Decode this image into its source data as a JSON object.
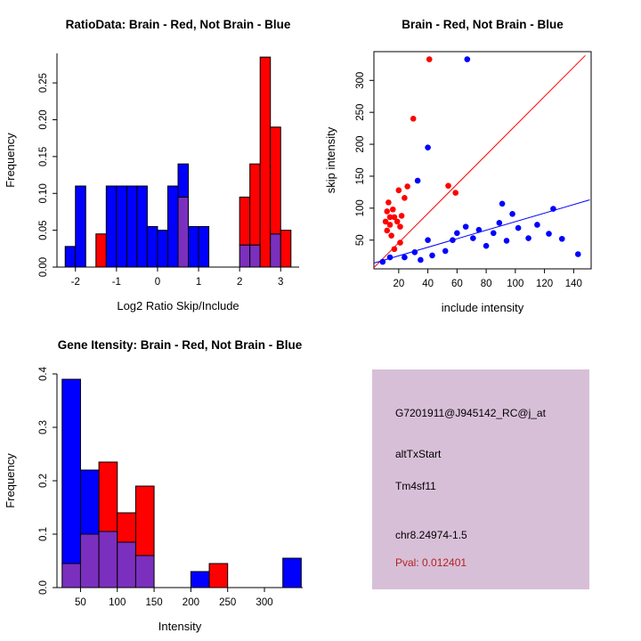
{
  "page": {
    "background": "#FFFFFF"
  },
  "info_panel": {
    "bg": "#D8BFD8",
    "lines": [
      "G7201911@J945142_RC@j_at",
      "altTxStart",
      "Tm4sf11",
      "chr8.24974-1.5"
    ],
    "pval": "Pval: 0.012401",
    "pval_color": "#B22222"
  },
  "chart_data": [
    {
      "id": "ratio_hist",
      "type": "bar",
      "subtype": "overlaid_histogram",
      "title": "RatioData: Brain - Red, Not Brain - Blue",
      "xlabel": "Log2 Ratio Skip/Include",
      "ylabel": "Frequency",
      "xlim": [
        -2.45,
        3.45
      ],
      "ylim": [
        0,
        0.29
      ],
      "xticks": [
        -2,
        -1,
        0,
        1,
        2,
        3
      ],
      "yticks": [
        0,
        0.05,
        0.1,
        0.15,
        0.2,
        0.25
      ],
      "ytick_labels": [
        "0.00",
        "0.05",
        "0.10",
        "0.15",
        "0.20",
        "0.25"
      ],
      "bin_width": 0.25,
      "colors": {
        "blue": "#0000FF",
        "red": "#FF0000",
        "overlap": "#7B2FBE"
      },
      "legend": {
        "red_series": "Brain",
        "blue_series": "Not Brain"
      },
      "bins": [
        {
          "x0": -2.25,
          "blue": 0.028,
          "red": 0
        },
        {
          "x0": -2.0,
          "blue": 0.11,
          "red": 0
        },
        {
          "x0": -1.5,
          "blue": 0,
          "red": 0.045
        },
        {
          "x0": -1.25,
          "blue": 0.11,
          "red": 0
        },
        {
          "x0": -1.0,
          "blue": 0.11,
          "red": 0
        },
        {
          "x0": -0.75,
          "blue": 0.11,
          "red": 0
        },
        {
          "x0": -0.5,
          "blue": 0.11,
          "red": 0
        },
        {
          "x0": -0.25,
          "blue": 0.055,
          "red": 0
        },
        {
          "x0": 0.0,
          "blue": 0.05,
          "red": 0
        },
        {
          "x0": 0.25,
          "blue": 0.11,
          "red": 0
        },
        {
          "x0": 0.5,
          "blue": 0.14,
          "red": 0.095
        },
        {
          "x0": 0.75,
          "blue": 0.055,
          "red": 0
        },
        {
          "x0": 1.0,
          "blue": 0.055,
          "red": 0
        },
        {
          "x0": 2.0,
          "blue": 0.03,
          "red": 0.095
        },
        {
          "x0": 2.25,
          "blue": 0.03,
          "red": 0.14
        },
        {
          "x0": 2.5,
          "blue": 0,
          "red": 0.285
        },
        {
          "x0": 2.75,
          "blue": 0.045,
          "red": 0.19
        },
        {
          "x0": 3.0,
          "blue": 0,
          "red": 0.05
        }
      ]
    },
    {
      "id": "scatter",
      "type": "scatter",
      "title": "Brain - Red, Not Brain - Blue",
      "xlabel": "include intensity",
      "ylabel": "skip intensity",
      "xlim": [
        3,
        152
      ],
      "ylim": [
        5,
        345
      ],
      "xticks": [
        20,
        40,
        60,
        80,
        100,
        120,
        140
      ],
      "yticks": [
        50,
        100,
        150,
        200,
        250,
        300
      ],
      "boxed": true,
      "series": [
        {
          "name": "Brain",
          "color": "#FF0000",
          "points": [
            [
              12,
              65
            ],
            [
              15,
              57
            ],
            [
              11,
              79
            ],
            [
              14,
              86
            ],
            [
              17,
              86
            ],
            [
              12,
              95
            ],
            [
              16,
              98
            ],
            [
              19,
              79
            ],
            [
              21,
              71
            ],
            [
              13,
              109
            ],
            [
              24,
              116
            ],
            [
              20,
              128
            ],
            [
              26,
              134
            ],
            [
              21,
              46
            ],
            [
              17,
              36
            ],
            [
              30,
              240
            ],
            [
              41,
              333
            ],
            [
              54,
              135
            ],
            [
              59,
              124
            ],
            [
              22,
              88
            ],
            [
              14,
              74
            ]
          ]
        },
        {
          "name": "Not Brain",
          "color": "#0000FF",
          "points": [
            [
              9,
              16
            ],
            [
              14,
              23
            ],
            [
              24,
              23
            ],
            [
              31,
              31
            ],
            [
              35,
              19
            ],
            [
              40,
              50
            ],
            [
              43,
              26
            ],
            [
              33,
              143
            ],
            [
              40,
              195
            ],
            [
              52,
              33
            ],
            [
              57,
              50
            ],
            [
              60,
              61
            ],
            [
              66,
              71
            ],
            [
              71,
              53
            ],
            [
              75,
              66
            ],
            [
              80,
              41
            ],
            [
              85,
              61
            ],
            [
              89,
              77
            ],
            [
              94,
              49
            ],
            [
              98,
              91
            ],
            [
              102,
              69
            ],
            [
              109,
              53
            ],
            [
              115,
              74
            ],
            [
              123,
              60
            ],
            [
              126,
              99
            ],
            [
              132,
              52
            ],
            [
              143,
              28
            ],
            [
              67,
              333
            ],
            [
              91,
              107
            ]
          ]
        }
      ],
      "lines": [
        {
          "color": "#FF0000",
          "from": [
            3,
            7
          ],
          "to": [
            148,
            339
          ]
        },
        {
          "color": "#0000FF",
          "from": [
            3,
            14
          ],
          "to": [
            151,
            113
          ]
        }
      ]
    },
    {
      "id": "gene_hist",
      "type": "bar",
      "subtype": "overlaid_histogram",
      "title": "Gene Itensity: Brain - Red, Not Brain - Blue",
      "xlabel": "Intensity",
      "ylabel": "Frequency",
      "xlim": [
        18,
        352
      ],
      "ylim": [
        0,
        0.4
      ],
      "xticks": [
        50,
        100,
        150,
        200,
        250,
        300
      ],
      "yticks": [
        0,
        0.1,
        0.2,
        0.3,
        0.4
      ],
      "ytick_labels": [
        "0.0",
        "0.1",
        "0.2",
        "0.3",
        "0.4"
      ],
      "bin_width": 25,
      "colors": {
        "blue": "#0000FF",
        "red": "#FF0000",
        "overlap": "#7B2FBE"
      },
      "bins": [
        {
          "x0": 25,
          "blue": 0.39,
          "red": 0.045
        },
        {
          "x0": 50,
          "blue": 0.22,
          "red": 0.1
        },
        {
          "x0": 75,
          "blue": 0.105,
          "red": 0.235
        },
        {
          "x0": 100,
          "blue": 0.085,
          "red": 0.14
        },
        {
          "x0": 125,
          "blue": 0.06,
          "red": 0.19
        },
        {
          "x0": 200,
          "blue": 0.03,
          "red": 0
        },
        {
          "x0": 225,
          "blue": 0,
          "red": 0.045
        },
        {
          "x0": 325,
          "blue": 0.055,
          "red": 0
        }
      ]
    }
  ]
}
